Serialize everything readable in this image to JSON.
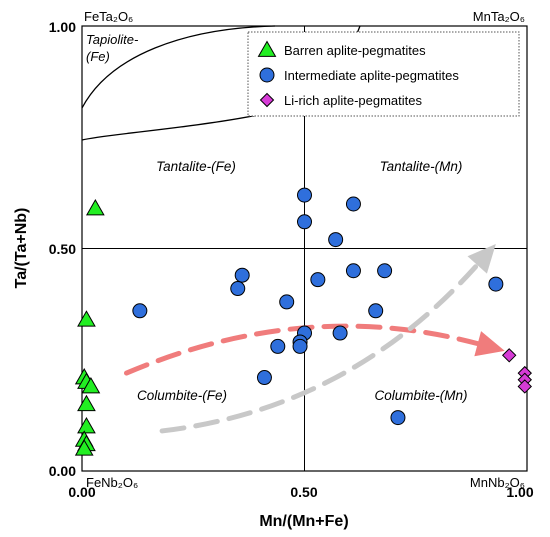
{
  "chart_data": {
    "type": "scatter",
    "xlabel": "Mn/(Mn+Fe)",
    "ylabel": "Ta/(Ta+Nb)",
    "xlim": [
      0,
      1
    ],
    "ylim": [
      0,
      1
    ],
    "x_ticks": [
      "0.00",
      "0.50",
      "1.00"
    ],
    "y_ticks": [
      "0.00",
      "0.50",
      "1.00"
    ],
    "grid": "cross at 0.50",
    "corner_labels": {
      "top_left": "FeTa₂O₆",
      "top_right": "MnTa₂O₆",
      "bottom_left": "FeNb₂O₆",
      "bottom_right": "MnNb₂O₆"
    },
    "field_labels": {
      "tapiolite_line1": "Tapiolite-",
      "tapiolite_line2": "(Fe)",
      "tantalite_fe": "Tantalite-(Fe)",
      "tantalite_mn": "Tantalite-(Mn)",
      "columbite_fe": "Columbite-(Fe)",
      "columbite_mn": "Columbite-(Mn)"
    },
    "legend_position": "top-right",
    "series": [
      {
        "name": "Barren aplite-pegmatites",
        "marker": "triangle",
        "color": "#22ee22",
        "points": [
          [
            0.03,
            0.59
          ],
          [
            0.01,
            0.34
          ],
          [
            0.005,
            0.21
          ],
          [
            0.01,
            0.2
          ],
          [
            0.02,
            0.19
          ],
          [
            0.01,
            0.15
          ],
          [
            0.01,
            0.1
          ],
          [
            0.005,
            0.07
          ],
          [
            0.01,
            0.06
          ],
          [
            0.005,
            0.05
          ]
        ]
      },
      {
        "name": "Intermediate aplite-pegmatites",
        "marker": "circle",
        "color": "#2f6fdc",
        "points": [
          [
            0.5,
            0.62
          ],
          [
            0.61,
            0.6
          ],
          [
            0.5,
            0.56
          ],
          [
            0.57,
            0.52
          ],
          [
            0.36,
            0.44
          ],
          [
            0.35,
            0.41
          ],
          [
            0.53,
            0.43
          ],
          [
            0.61,
            0.45
          ],
          [
            0.68,
            0.45
          ],
          [
            0.93,
            0.42
          ],
          [
            0.46,
            0.38
          ],
          [
            0.13,
            0.36
          ],
          [
            0.66,
            0.36
          ],
          [
            0.5,
            0.31
          ],
          [
            0.58,
            0.31
          ],
          [
            0.49,
            0.29
          ],
          [
            0.44,
            0.28
          ],
          [
            0.49,
            0.28
          ],
          [
            0.41,
            0.21
          ],
          [
            0.71,
            0.12
          ]
        ]
      },
      {
        "name": "Li-rich aplite-pegmatites",
        "marker": "diamond",
        "color": "#d63bd6",
        "points": [
          [
            0.96,
            0.26
          ],
          [
            0.995,
            0.22
          ],
          [
            0.995,
            0.205
          ],
          [
            0.995,
            0.19
          ]
        ]
      }
    ],
    "arrows": [
      {
        "color": "#f07c7c",
        "style": "dashed",
        "path": [
          [
            0.1,
            0.22
          ],
          [
            0.5,
            0.39
          ],
          [
            0.95,
            0.27
          ]
        ]
      },
      {
        "color": "#c8c8c8",
        "style": "dashed",
        "path": [
          [
            0.18,
            0.09
          ],
          [
            0.6,
            0.14
          ],
          [
            0.93,
            0.51
          ]
        ]
      }
    ]
  }
}
